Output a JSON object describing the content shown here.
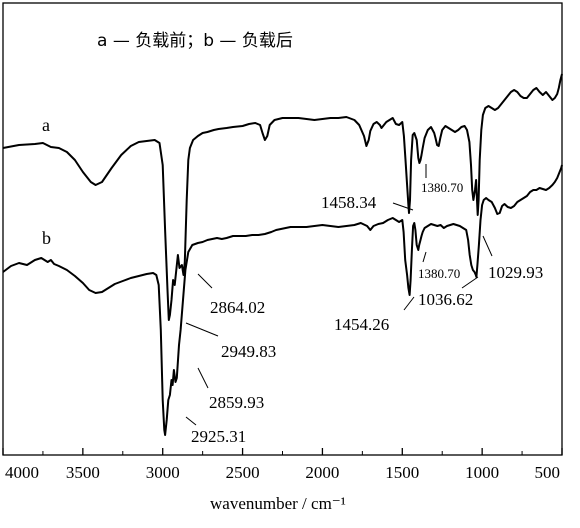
{
  "chart_data": {
    "type": "line",
    "title": "",
    "legend_text": "a — 负载前；b — 负载后",
    "xlabel": "wavenumber / cm⁻¹",
    "ylabel": "",
    "xlim": [
      4000,
      500
    ],
    "x_reversed": true,
    "x_ticks": [
      "4000",
      "3500",
      "3000",
      "2500",
      "2000",
      "1500",
      "1000",
      "500"
    ],
    "y_ticks_shown": false,
    "grid": false,
    "series": [
      {
        "name": "a",
        "points": [
          [
            4000,
            148
          ],
          [
            3900,
            145
          ],
          [
            3800,
            144
          ],
          [
            3750,
            143
          ],
          [
            3700,
            147
          ],
          [
            3650,
            148
          ],
          [
            3600,
            152
          ],
          [
            3550,
            160
          ],
          [
            3500,
            172
          ],
          [
            3450,
            182
          ],
          [
            3420,
            185
          ],
          [
            3380,
            182
          ],
          [
            3320,
            168
          ],
          [
            3260,
            155
          ],
          [
            3200,
            146
          ],
          [
            3150,
            142
          ],
          [
            3100,
            141
          ],
          [
            3050,
            140
          ],
          [
            3020,
            143
          ],
          [
            3000,
            165
          ],
          [
            2985,
            230
          ],
          [
            2970,
            290
          ],
          [
            2962,
            320
          ],
          [
            2955,
            315
          ],
          [
            2945,
            300
          ],
          [
            2935,
            280
          ],
          [
            2925,
            285
          ],
          [
            2915,
            270
          ],
          [
            2905,
            255
          ],
          [
            2895,
            268
          ],
          [
            2880,
            265
          ],
          [
            2870,
            275
          ],
          [
            2862,
            262
          ],
          [
            2850,
            200
          ],
          [
            2840,
            160
          ],
          [
            2830,
            148
          ],
          [
            2810,
            140
          ],
          [
            2780,
            136
          ],
          [
            2750,
            133
          ],
          [
            2720,
            132
          ],
          [
            2680,
            130
          ],
          [
            2650,
            129
          ],
          [
            2600,
            128
          ],
          [
            2560,
            127
          ],
          [
            2500,
            126
          ],
          [
            2460,
            124
          ],
          [
            2420,
            123
          ],
          [
            2390,
            125
          ],
          [
            2375,
            133
          ],
          [
            2360,
            140
          ],
          [
            2345,
            136
          ],
          [
            2330,
            125
          ],
          [
            2300,
            120
          ],
          [
            2250,
            118
          ],
          [
            2200,
            118
          ],
          [
            2150,
            118
          ],
          [
            2100,
            119
          ],
          [
            2050,
            120
          ],
          [
            2000,
            119
          ],
          [
            1950,
            118
          ],
          [
            1900,
            118
          ],
          [
            1850,
            117
          ],
          [
            1800,
            120
          ],
          [
            1770,
            125
          ],
          [
            1740,
            136
          ],
          [
            1725,
            146
          ],
          [
            1710,
            140
          ],
          [
            1700,
            131
          ],
          [
            1680,
            124
          ],
          [
            1660,
            122
          ],
          [
            1640,
            125
          ],
          [
            1630,
            128
          ],
          [
            1620,
            126
          ],
          [
            1600,
            122
          ],
          [
            1580,
            120
          ],
          [
            1560,
            118
          ],
          [
            1540,
            124
          ],
          [
            1520,
            125
          ],
          [
            1500,
            122
          ],
          [
            1490,
            136
          ],
          [
            1480,
            160
          ],
          [
            1470,
            185
          ],
          [
            1462,
            205
          ],
          [
            1458,
            213
          ],
          [
            1452,
            200
          ],
          [
            1445,
            160
          ],
          [
            1435,
            135
          ],
          [
            1425,
            133
          ],
          [
            1410,
            140
          ],
          [
            1400,
            158
          ],
          [
            1393,
            163
          ],
          [
            1386,
            160
          ],
          [
            1380,
            155
          ],
          [
            1372,
            148
          ],
          [
            1360,
            138
          ],
          [
            1340,
            130
          ],
          [
            1320,
            127
          ],
          [
            1300,
            133
          ],
          [
            1292,
            138
          ],
          [
            1282,
            145
          ],
          [
            1272,
            146
          ],
          [
            1262,
            138
          ],
          [
            1250,
            130
          ],
          [
            1230,
            126
          ],
          [
            1210,
            128
          ],
          [
            1190,
            130
          ],
          [
            1170,
            132
          ],
          [
            1150,
            130
          ],
          [
            1130,
            127
          ],
          [
            1110,
            126
          ],
          [
            1095,
            130
          ],
          [
            1080,
            142
          ],
          [
            1070,
            165
          ],
          [
            1062,
            190
          ],
          [
            1055,
            200
          ],
          [
            1045,
            190
          ],
          [
            1038,
            180
          ],
          [
            1032,
            200
          ],
          [
            1028,
            215
          ],
          [
            1022,
            200
          ],
          [
            1015,
            160
          ],
          [
            1005,
            130
          ],
          [
            995,
            115
          ],
          [
            980,
            108
          ],
          [
            960,
            106
          ],
          [
            940,
            108
          ],
          [
            920,
            110
          ],
          [
            900,
            108
          ],
          [
            880,
            104
          ],
          [
            860,
            100
          ],
          [
            840,
            96
          ],
          [
            820,
            92
          ],
          [
            800,
            90
          ],
          [
            780,
            92
          ],
          [
            760,
            96
          ],
          [
            740,
            98
          ],
          [
            720,
            98
          ],
          [
            700,
            94
          ],
          [
            680,
            90
          ],
          [
            660,
            88
          ],
          [
            640,
            92
          ],
          [
            620,
            95
          ],
          [
            600,
            92
          ],
          [
            580,
            96
          ],
          [
            560,
            100
          ],
          [
            545,
            98
          ],
          [
            530,
            94
          ],
          [
            520,
            88
          ],
          [
            510,
            80
          ],
          [
            500,
            74
          ]
        ]
      },
      {
        "name": "b",
        "points": [
          [
            4000,
            272
          ],
          [
            3950,
            266
          ],
          [
            3900,
            263
          ],
          [
            3850,
            265
          ],
          [
            3800,
            260
          ],
          [
            3760,
            258
          ],
          [
            3720,
            262
          ],
          [
            3700,
            260
          ],
          [
            3680,
            264
          ],
          [
            3650,
            266
          ],
          [
            3600,
            270
          ],
          [
            3550,
            276
          ],
          [
            3500,
            283
          ],
          [
            3460,
            290
          ],
          [
            3420,
            293
          ],
          [
            3380,
            292
          ],
          [
            3340,
            288
          ],
          [
            3300,
            284
          ],
          [
            3250,
            281
          ],
          [
            3200,
            278
          ],
          [
            3150,
            276
          ],
          [
            3100,
            274
          ],
          [
            3060,
            273
          ],
          [
            3040,
            275
          ],
          [
            3025,
            285
          ],
          [
            3012,
            330
          ],
          [
            3000,
            400
          ],
          [
            2990,
            430
          ],
          [
            2985,
            435
          ],
          [
            2975,
            420
          ],
          [
            2965,
            400
          ],
          [
            2955,
            395
          ],
          [
            2945,
            380
          ],
          [
            2938,
            385
          ],
          [
            2930,
            370
          ],
          [
            2920,
            382
          ],
          [
            2912,
            378
          ],
          [
            2904,
            360
          ],
          [
            2898,
            345
          ],
          [
            2888,
            330
          ],
          [
            2878,
            310
          ],
          [
            2868,
            290
          ],
          [
            2858,
            270
          ],
          [
            2840,
            252
          ],
          [
            2815,
            245
          ],
          [
            2780,
            243
          ],
          [
            2750,
            242
          ],
          [
            2720,
            240
          ],
          [
            2690,
            239
          ],
          [
            2660,
            238
          ],
          [
            2630,
            239
          ],
          [
            2600,
            238
          ],
          [
            2560,
            236
          ],
          [
            2520,
            236
          ],
          [
            2480,
            236
          ],
          [
            2440,
            235
          ],
          [
            2400,
            235
          ],
          [
            2360,
            234
          ],
          [
            2320,
            232
          ],
          [
            2290,
            230
          ],
          [
            2260,
            229
          ],
          [
            2230,
            228
          ],
          [
            2200,
            227
          ],
          [
            2150,
            227
          ],
          [
            2100,
            227
          ],
          [
            2050,
            226
          ],
          [
            2000,
            225
          ],
          [
            1950,
            226
          ],
          [
            1900,
            227
          ],
          [
            1850,
            226
          ],
          [
            1800,
            225
          ],
          [
            1760,
            223
          ],
          [
            1720,
            226
          ],
          [
            1700,
            230
          ],
          [
            1680,
            226
          ],
          [
            1650,
            224
          ],
          [
            1620,
            223
          ],
          [
            1590,
            220
          ],
          [
            1560,
            218
          ],
          [
            1540,
            220
          ],
          [
            1520,
            222
          ],
          [
            1500,
            220
          ],
          [
            1492,
            232
          ],
          [
            1482,
            260
          ],
          [
            1470,
            275
          ],
          [
            1462,
            288
          ],
          [
            1454,
            295
          ],
          [
            1448,
            280
          ],
          [
            1440,
            250
          ],
          [
            1432,
            226
          ],
          [
            1425,
            223
          ],
          [
            1418,
            230
          ],
          [
            1410,
            245
          ],
          [
            1400,
            250
          ],
          [
            1394,
            245
          ],
          [
            1386,
            240
          ],
          [
            1380,
            236
          ],
          [
            1372,
            232
          ],
          [
            1360,
            228
          ],
          [
            1340,
            226
          ],
          [
            1320,
            224
          ],
          [
            1300,
            225
          ],
          [
            1280,
            226
          ],
          [
            1260,
            225
          ],
          [
            1240,
            228
          ],
          [
            1220,
            226
          ],
          [
            1200,
            225
          ],
          [
            1180,
            224
          ],
          [
            1160,
            225
          ],
          [
            1140,
            226
          ],
          [
            1120,
            228
          ],
          [
            1100,
            230
          ],
          [
            1088,
            240
          ],
          [
            1078,
            255
          ],
          [
            1068,
            265
          ],
          [
            1058,
            270
          ],
          [
            1048,
            272
          ],
          [
            1040,
            275
          ],
          [
            1036,
            277
          ],
          [
            1030,
            265
          ],
          [
            1020,
            245
          ],
          [
            1010,
            220
          ],
          [
            1000,
            205
          ],
          [
            990,
            200
          ],
          [
            975,
            198
          ],
          [
            960,
            200
          ],
          [
            940,
            202
          ],
          [
            920,
            208
          ],
          [
            905,
            214
          ],
          [
            890,
            213
          ],
          [
            875,
            206
          ],
          [
            860,
            204
          ],
          [
            840,
            207
          ],
          [
            820,
            208
          ],
          [
            800,
            206
          ],
          [
            780,
            202
          ],
          [
            760,
            200
          ],
          [
            740,
            198
          ],
          [
            720,
            196
          ],
          [
            700,
            192
          ],
          [
            680,
            190
          ],
          [
            660,
            190
          ],
          [
            640,
            188
          ],
          [
            620,
            189
          ],
          [
            600,
            190
          ],
          [
            580,
            188
          ],
          [
            560,
            185
          ],
          [
            545,
            182
          ],
          [
            530,
            178
          ],
          [
            515,
            172
          ],
          [
            505,
            168
          ],
          [
            500,
            165
          ]
        ]
      }
    ],
    "annotations": [
      {
        "text": "1380.70",
        "x": 1380,
        "series": "a",
        "size": "small"
      },
      {
        "text": "1458.34",
        "x": 1458,
        "series": "a"
      },
      {
        "text": "1029.93",
        "x": 1028,
        "series": "a"
      },
      {
        "text": "2864.02",
        "x": 2862,
        "series": "a"
      },
      {
        "text": "2949.83",
        "x": 2955,
        "series": "a"
      },
      {
        "text": "1380.70",
        "x": 1400,
        "series": "b",
        "size": "small"
      },
      {
        "text": "1036.62",
        "x": 1040,
        "series": "b"
      },
      {
        "text": "1454.26",
        "x": 1454,
        "series": "b"
      },
      {
        "text": "2859.93",
        "x": 2898,
        "series": "b"
      },
      {
        "text": "2925.31",
        "x": 2985,
        "series": "b"
      }
    ]
  }
}
